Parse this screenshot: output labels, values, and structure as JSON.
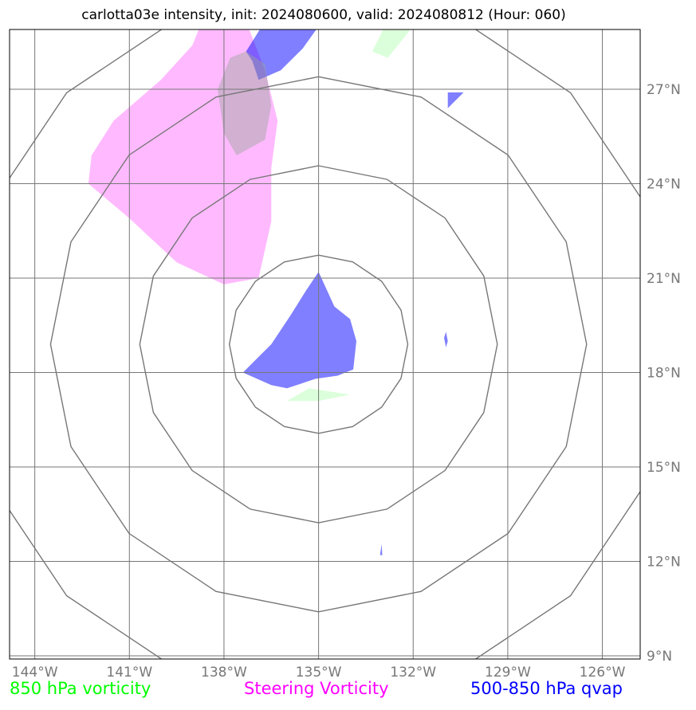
{
  "title": "carlotta03e intensity, init: 2024080600, valid: 2024080812 (Hour: 060)",
  "map": {
    "lon_range": [
      -144.8,
      -124.8
    ],
    "lat_range": [
      8.9,
      28.9
    ],
    "lon_ticks": [
      {
        "value": -144,
        "label": "144°W"
      },
      {
        "value": -141,
        "label": "141°W"
      },
      {
        "value": -138,
        "label": "138°W"
      },
      {
        "value": -135,
        "label": "135°W"
      },
      {
        "value": -132,
        "label": "132°W"
      },
      {
        "value": -129,
        "label": "129°W"
      },
      {
        "value": -126,
        "label": "126°W"
      }
    ],
    "lat_ticks": [
      {
        "value": 9,
        "label": "9°N"
      },
      {
        "value": 12,
        "label": "12°N"
      },
      {
        "value": 15,
        "label": "15°N"
      },
      {
        "value": 18,
        "label": "18°N"
      },
      {
        "value": 21,
        "label": "21°N"
      },
      {
        "value": 24,
        "label": "24°N"
      },
      {
        "value": 27,
        "label": "27°N"
      }
    ],
    "center": {
      "lon": -135.0,
      "lat": 18.9
    },
    "range_ring_radii_deg": [
      2.83,
      5.67,
      8.5,
      11.3
    ],
    "colors": {
      "vorticity_850": "#00ff00",
      "steering_vorticity": "#ff00ff",
      "qvap": "#0000ff",
      "grid": "#777777",
      "ring": "#777777"
    },
    "fields": {
      "steering_vorticity": [
        [
          [
            -142.2,
            24.9
          ],
          [
            -141.5,
            26.0
          ],
          [
            -140.0,
            27.3
          ],
          [
            -139.0,
            28.4
          ],
          [
            -138.8,
            28.9
          ],
          [
            -137.2,
            28.9
          ],
          [
            -136.7,
            27.6
          ],
          [
            -136.3,
            26.0
          ],
          [
            -136.5,
            24.5
          ],
          [
            -136.5,
            22.8
          ],
          [
            -136.9,
            21.0
          ],
          [
            -138.0,
            20.8
          ],
          [
            -139.5,
            21.5
          ],
          [
            -141.0,
            22.9
          ],
          [
            -142.3,
            24.0
          ]
        ]
      ],
      "vorticity_850": [
        [
          [
            -134.0,
            17.3
          ],
          [
            -135.0,
            17.1
          ],
          [
            -136.0,
            17.1
          ],
          [
            -135.3,
            17.5
          ]
        ],
        [
          [
            -132.9,
            29.0
          ],
          [
            -132.0,
            29.0
          ],
          [
            -132.8,
            28.0
          ],
          [
            -133.3,
            28.2
          ]
        ]
      ],
      "qvap": [
        [
          [
            -135.0,
            21.2
          ],
          [
            -134.5,
            20.1
          ],
          [
            -134.0,
            19.7
          ],
          [
            -133.8,
            19.0
          ],
          [
            -133.9,
            18.1
          ],
          [
            -134.4,
            17.9
          ],
          [
            -135.1,
            17.8
          ],
          [
            -136.0,
            17.5
          ],
          [
            -136.5,
            17.6
          ],
          [
            -137.4,
            18.0
          ],
          [
            -136.5,
            18.9
          ],
          [
            -135.9,
            19.8
          ],
          [
            -135.4,
            20.6
          ]
        ],
        [
          [
            -136.8,
            29.0
          ],
          [
            -135.0,
            29.0
          ],
          [
            -135.5,
            28.3
          ],
          [
            -136.2,
            27.6
          ],
          [
            -136.9,
            27.3
          ],
          [
            -137.1,
            27.9
          ],
          [
            -137.3,
            28.2
          ]
        ],
        [
          [
            -130.9,
            26.9
          ],
          [
            -130.4,
            26.9
          ],
          [
            -130.9,
            26.4
          ]
        ],
        [
          [
            -130.96,
            19.3
          ],
          [
            -130.9,
            19.0
          ],
          [
            -130.96,
            18.8
          ],
          [
            -131.02,
            19.1
          ]
        ],
        [
          [
            -133.05,
            12.2
          ],
          [
            -133.0,
            12.55
          ],
          [
            -132.98,
            12.2
          ]
        ]
      ],
      "overlap": [
        [
          [
            -137.8,
            28.0
          ],
          [
            -137.3,
            28.2
          ],
          [
            -136.7,
            27.8
          ],
          [
            -136.5,
            26.5
          ],
          [
            -136.7,
            25.4
          ],
          [
            -137.6,
            24.9
          ],
          [
            -138.0,
            25.6
          ],
          [
            -138.2,
            27.0
          ]
        ]
      ]
    }
  },
  "legend": {
    "vorticity_850": "850 hPa vorticity",
    "steering_vorticity": "Steering Vorticity",
    "qvap": "500-850 hPa qvap"
  }
}
